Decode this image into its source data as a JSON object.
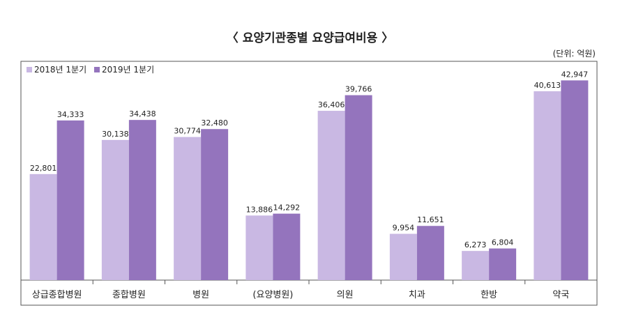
{
  "chart_data": {
    "type": "bar",
    "title": "〈 요양기관종별 요양급여비용 〉",
    "unit": "(단위: 억원)",
    "categories": [
      "상급종합병원",
      "종합병원",
      "병원",
      "(요양병원)",
      "의원",
      "치과",
      "한방",
      "약국"
    ],
    "series": [
      {
        "name": "2018년 1분기",
        "color": "#c9b8e3",
        "values": [
          22801,
          30138,
          30774,
          13886,
          36406,
          9954,
          6273,
          40613
        ]
      },
      {
        "name": "2019년 1분기",
        "color": "#9474bd",
        "values": [
          34333,
          34438,
          32480,
          14292,
          39766,
          11651,
          6804,
          42947
        ]
      }
    ],
    "ylim": [
      0,
      46000
    ],
    "grid": false,
    "legend": "top-left"
  }
}
